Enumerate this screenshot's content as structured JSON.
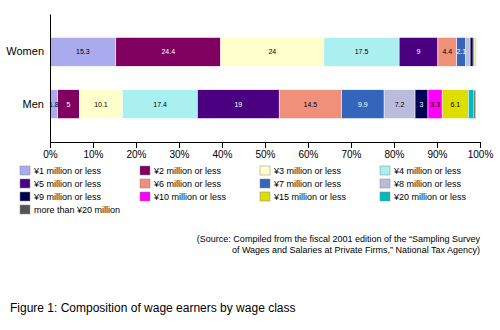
{
  "chart_data": {
    "type": "bar",
    "title": "Figure 1: Composition of wage earners by wage class",
    "annotations": [
      "(Source: Compiled from the fiscal 2001 edition of the “Sampling Survey\nof Wages and Salaries at Private Firms,” National Tax Agency)"
    ],
    "orientation": "horizontal",
    "stacked": true,
    "data_labels": true,
    "grid": false,
    "legend": "bottom",
    "categories": [
      "Men",
      "Women"
    ],
    "series": [
      {
        "name": "¥1 million or less",
        "color": "#aaaaee",
        "values": [
          1.8,
          15.3
        ],
        "value_labels": [
          "1.8",
          "15.3"
        ]
      },
      {
        "name": "¥2 million or less",
        "color": "#800060",
        "values": [
          5.0,
          24.4
        ],
        "value_labels": [
          "5",
          "24.4"
        ]
      },
      {
        "name": "¥3 million or less",
        "color": "#ffffcc",
        "values": [
          10.1,
          24.0
        ],
        "value_labels": [
          "10.1",
          "24"
        ]
      },
      {
        "name": "¥4 million or less",
        "color": "#aaf0f0",
        "values": [
          17.4,
          17.5
        ],
        "value_labels": [
          "17.4",
          "17.5"
        ]
      },
      {
        "name": "¥5 million or less",
        "color": "#4b0082",
        "values": [
          19.0,
          9.0
        ],
        "value_labels": [
          "19",
          "9"
        ]
      },
      {
        "name": "¥6 million or less",
        "color": "#f0907a",
        "values": [
          14.5,
          4.4
        ],
        "value_labels": [
          "14.5",
          "4.4"
        ]
      },
      {
        "name": "¥7 million or less",
        "color": "#3366bb",
        "values": [
          9.9,
          2.1
        ],
        "value_labels": [
          "9.9",
          "2.1"
        ]
      },
      {
        "name": "¥8 million or less",
        "color": "#bbbbdd",
        "values": [
          7.2,
          1.0
        ],
        "value_labels": [
          "7.2",
          null
        ]
      },
      {
        "name": "¥9 million or less",
        "color": "#000055",
        "values": [
          3.0,
          0.7
        ],
        "value_labels": [
          "3",
          null
        ]
      },
      {
        "name": "¥10 million or less",
        "color": "#ff00ff",
        "values": [
          3.3,
          0.3
        ],
        "value_labels": [
          "3.3",
          null
        ]
      },
      {
        "name": "¥15 million or less",
        "color": "#dddd00",
        "values": [
          6.1,
          0.2
        ],
        "value_labels": [
          "6.1",
          null
        ]
      },
      {
        "name": "¥20 million or less",
        "color": "#00bbbb",
        "values": [
          1.3,
          0.1
        ],
        "value_labels": [
          null,
          null
        ]
      },
      {
        "name": "more than ¥20 million",
        "color": "#555555",
        "values": [
          0.4,
          0.1
        ],
        "value_labels": [
          null,
          null
        ]
      }
    ],
    "xlim": [
      0,
      100
    ],
    "xticks": [
      {
        "value": 0,
        "label": "0%"
      },
      {
        "value": 10,
        "label": "10%"
      },
      {
        "value": 20,
        "label": "20%"
      },
      {
        "value": 30,
        "label": "30%"
      },
      {
        "value": 40,
        "label": "40%"
      },
      {
        "value": 50,
        "label": "50%"
      },
      {
        "value": 60,
        "label": "60%"
      },
      {
        "value": 70,
        "label": "70%"
      },
      {
        "value": 80,
        "label": "80%"
      },
      {
        "value": 90,
        "label": "90%"
      },
      {
        "value": 100,
        "label": "100%"
      }
    ]
  }
}
